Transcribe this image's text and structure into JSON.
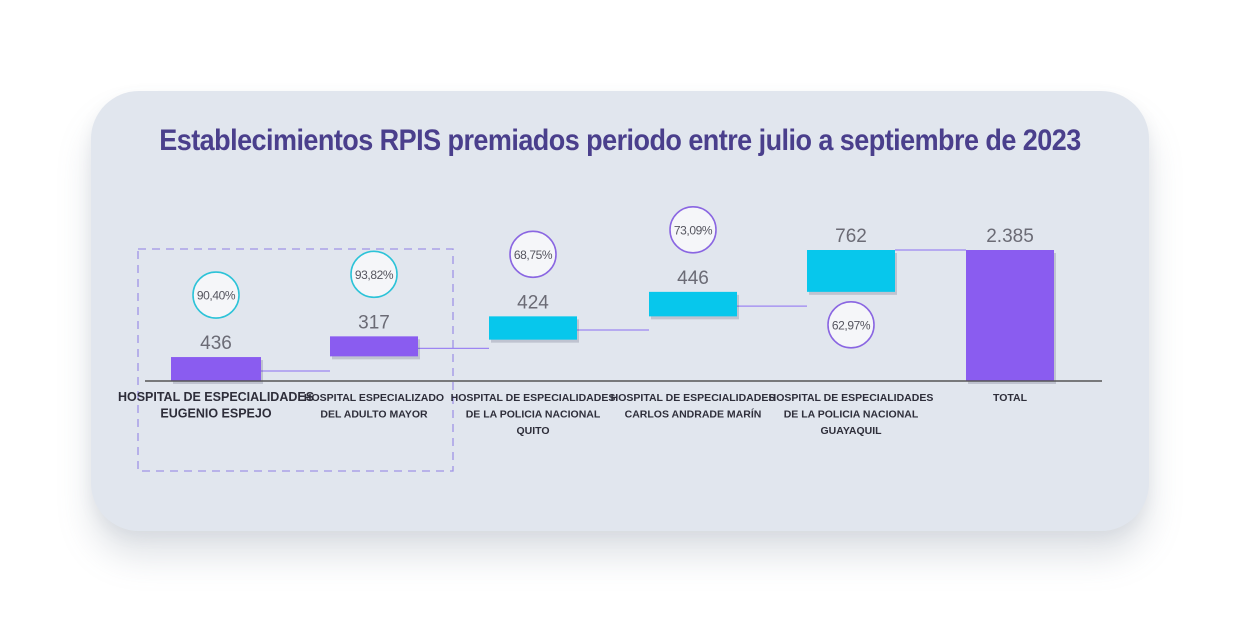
{
  "chart_data": {
    "type": "bar",
    "subtype": "waterfall",
    "title": "Establecimientos RPIS premiados periodo entre julio a septiembre de 2023",
    "categories": [
      [
        "HOSPITAL DE ESPECIALIDADES",
        "EUGENIO ESPEJO"
      ],
      [
        "HOSPITAL ESPECIALIZADO",
        "DEL ADULTO MAYOR"
      ],
      [
        "HOSPITAL DE ESPECIALIDADES",
        "DE LA POLICIA NACIONAL",
        "QUITO"
      ],
      [
        "HOSPITAL DE ESPECIALIDADES",
        "CARLOS ANDRADE MARÍN"
      ],
      [
        "HOSPITAL DE ESPECIALIDADES",
        "DE LA POLICIA NACIONAL",
        "GUAYAQUIL"
      ],
      [
        "TOTAL"
      ]
    ],
    "values": [
      436,
      317,
      424,
      446,
      762,
      2385
    ],
    "value_labels": [
      "436",
      "317",
      "424",
      "446",
      "762",
      "2.385"
    ],
    "percent_labels": [
      "90,40%",
      "93,82%",
      "68,75%",
      "73,09%",
      "62,97%",
      ""
    ],
    "percent_position": [
      "above",
      "above",
      "above",
      "above",
      "below",
      "none"
    ],
    "cumulative_start": [
      0,
      436,
      753,
      1177,
      1623,
      0
    ],
    "ylim": [
      0,
      2385
    ],
    "grid": false,
    "colors": {
      "purple": "#8a5cf0",
      "cyan": "#07c7ec",
      "connector": "#9d86f2",
      "circle_teal": "#2cc3d8",
      "circle_purple": "#8a66e2",
      "baseline": "#555555",
      "dashed_box": "#9f94e6",
      "title": "#4a3f8c"
    },
    "bar_colors": [
      "purple",
      "purple",
      "cyan",
      "cyan",
      "cyan",
      "purple"
    ],
    "circle_colors": [
      "circle_teal",
      "circle_teal",
      "circle_purple",
      "circle_purple",
      "circle_purple",
      ""
    ],
    "highlight_group": [
      0,
      1
    ]
  }
}
